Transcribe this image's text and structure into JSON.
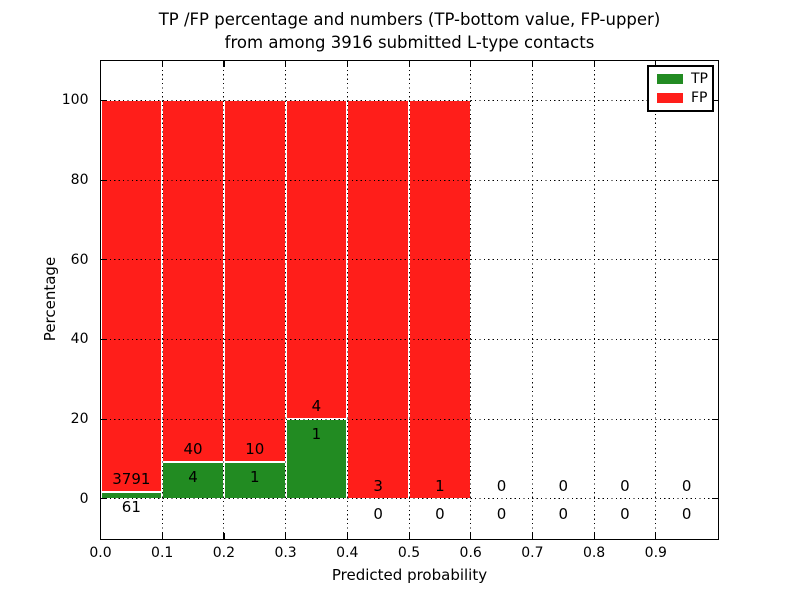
{
  "chart_data": {
    "type": "bar",
    "stacked": true,
    "title_line1": "TP /FP percentage and numbers (TP-bottom value, FP-upper)",
    "title_line2": "from among 3916 submitted L-type contacts",
    "total_contacts": 3916,
    "xlabel": "Predicted probability",
    "ylabel": "Percentage",
    "xlim": [
      0.0,
      1.0
    ],
    "ylim": [
      -10,
      110
    ],
    "x_ticks": {
      "values": [
        0.0,
        0.1,
        0.2,
        0.3,
        0.4,
        0.5,
        0.6,
        0.7,
        0.8,
        0.9
      ],
      "labels": [
        "0.0",
        "0.1",
        "0.2",
        "0.3",
        "0.4",
        "0.5",
        "0.6",
        "0.7",
        "0.8",
        "0.9"
      ]
    },
    "y_ticks": {
      "values": [
        0,
        20,
        40,
        60,
        80,
        100
      ],
      "labels": [
        "0",
        "20",
        "40",
        "60",
        "80",
        "100"
      ]
    },
    "grid": {
      "style": "dotted",
      "color": "#000000"
    },
    "colors": {
      "tp": "#228b22",
      "fp": "#ff1e1a",
      "bar_edge": "#ffffff"
    },
    "legend": {
      "position": "upper right",
      "entries": [
        {
          "label": "TP",
          "color": "#228b22"
        },
        {
          "label": "FP",
          "color": "#ff1e1a"
        }
      ]
    },
    "bins": [
      {
        "range": [
          0.0,
          0.1
        ],
        "tp": 61,
        "fp": 3791,
        "tp_pct": 1.58,
        "fp_pct": 98.42,
        "bar": true
      },
      {
        "range": [
          0.1,
          0.2
        ],
        "tp": 4,
        "fp": 40,
        "tp_pct": 9.09,
        "fp_pct": 90.91,
        "bar": true
      },
      {
        "range": [
          0.2,
          0.3
        ],
        "tp": 1,
        "fp": 10,
        "tp_pct": 9.09,
        "fp_pct": 90.91,
        "bar": true
      },
      {
        "range": [
          0.3,
          0.4
        ],
        "tp": 1,
        "fp": 4,
        "tp_pct": 20.0,
        "fp_pct": 80.0,
        "bar": true
      },
      {
        "range": [
          0.4,
          0.5
        ],
        "tp": 0,
        "fp": 3,
        "tp_pct": 0.0,
        "fp_pct": 100.0,
        "bar": true
      },
      {
        "range": [
          0.5,
          0.6
        ],
        "tp": 0,
        "fp": 1,
        "tp_pct": 0.0,
        "fp_pct": 100.0,
        "bar": true
      },
      {
        "range": [
          0.6,
          0.7
        ],
        "tp": 0,
        "fp": 0,
        "tp_pct": 0.0,
        "fp_pct": 0.0,
        "bar": false
      },
      {
        "range": [
          0.7,
          0.8
        ],
        "tp": 0,
        "fp": 0,
        "tp_pct": 0.0,
        "fp_pct": 0.0,
        "bar": false
      },
      {
        "range": [
          0.8,
          0.9
        ],
        "tp": 0,
        "fp": 0,
        "tp_pct": 0.0,
        "fp_pct": 0.0,
        "bar": false
      },
      {
        "range": [
          0.9,
          1.0
        ],
        "tp": 0,
        "fp": 0,
        "tp_pct": 0.0,
        "fp_pct": 0.0,
        "bar": false
      }
    ]
  }
}
